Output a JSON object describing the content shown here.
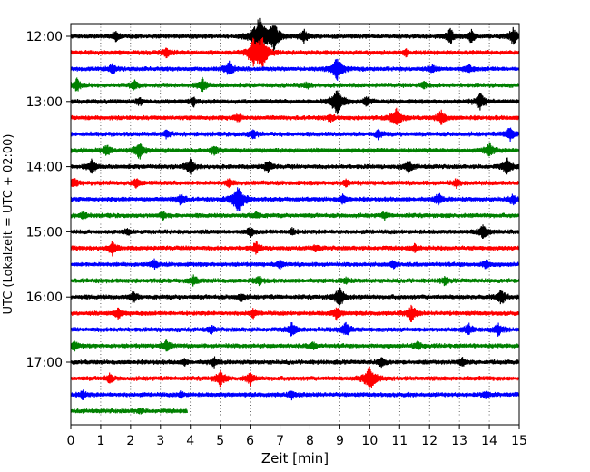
{
  "chart_data": {
    "type": "line",
    "xlabel": "Zeit  [min]",
    "ylabel": "UTC (Lokalzeit = UTC + 02:00)",
    "xlim": [
      0,
      15
    ],
    "x_ticks": [
      "0",
      "1",
      "2",
      "3",
      "4",
      "5",
      "6",
      "7",
      "8",
      "9",
      "10",
      "11",
      "12",
      "13",
      "14",
      "15"
    ],
    "y_ticks": [
      {
        "label": "12:00",
        "trace_index": 0
      },
      {
        "label": "13:00",
        "trace_index": 4
      },
      {
        "label": "14:00",
        "trace_index": 8
      },
      {
        "label": "15:00",
        "trace_index": 12
      },
      {
        "label": "16:00",
        "trace_index": 16
      },
      {
        "label": "17:00",
        "trace_index": 20
      }
    ],
    "grid": "vertical dotted",
    "trace_interval_minutes": 15,
    "color_cycle": [
      "#000000",
      "#ff0000",
      "#0000ff",
      "#008000"
    ],
    "traces": [
      {
        "start": "12:00",
        "duration_min": 15,
        "events": [
          [
            1.5,
            0.6
          ],
          [
            6.3,
            2.5
          ],
          [
            6.8,
            1.8
          ],
          [
            7.8,
            0.9
          ],
          [
            12.7,
            1.0
          ],
          [
            13.4,
            0.8
          ],
          [
            14.8,
            1.1
          ]
        ]
      },
      {
        "start": "12:15",
        "duration_min": 15,
        "events": [
          [
            3.2,
            0.7
          ],
          [
            6.1,
            1.6
          ],
          [
            6.4,
            2.0
          ],
          [
            11.2,
            0.5
          ]
        ]
      },
      {
        "start": "12:30",
        "duration_min": 15,
        "events": [
          [
            1.4,
            0.7
          ],
          [
            5.3,
            1.0
          ],
          [
            8.9,
            1.6
          ],
          [
            12.1,
            0.5
          ],
          [
            13.3,
            0.6
          ]
        ]
      },
      {
        "start": "12:45",
        "duration_min": 15,
        "events": [
          [
            0.2,
            0.9
          ],
          [
            2.1,
            0.7
          ],
          [
            4.4,
            0.9
          ],
          [
            7.9,
            0.4
          ],
          [
            11.8,
            0.5
          ]
        ]
      },
      {
        "start": "13:00",
        "duration_min": 15,
        "events": [
          [
            2.3,
            0.5
          ],
          [
            4.1,
            0.6
          ],
          [
            8.9,
            1.8
          ],
          [
            9.9,
            0.6
          ],
          [
            13.7,
            1.1
          ]
        ]
      },
      {
        "start": "13:15",
        "duration_min": 15,
        "events": [
          [
            5.6,
            0.5
          ],
          [
            8.7,
            0.5
          ],
          [
            10.9,
            1.4
          ],
          [
            12.4,
            1.0
          ]
        ]
      },
      {
        "start": "13:30",
        "duration_min": 15,
        "events": [
          [
            3.2,
            0.5
          ],
          [
            6.1,
            0.7
          ],
          [
            10.3,
            0.6
          ],
          [
            14.7,
            1.0
          ]
        ]
      },
      {
        "start": "13:45",
        "duration_min": 15,
        "events": [
          [
            1.2,
            0.7
          ],
          [
            2.3,
            1.2
          ],
          [
            4.8,
            0.7
          ],
          [
            14.0,
            1.0
          ]
        ]
      },
      {
        "start": "14:00",
        "duration_min": 15,
        "events": [
          [
            0.7,
            0.9
          ],
          [
            4.0,
            1.0
          ],
          [
            6.6,
            0.8
          ],
          [
            11.3,
            0.8
          ],
          [
            14.6,
            1.1
          ]
        ]
      },
      {
        "start": "14:15",
        "duration_min": 15,
        "events": [
          [
            0.1,
            0.7
          ],
          [
            2.2,
            0.6
          ],
          [
            5.3,
            0.5
          ],
          [
            9.2,
            0.4
          ],
          [
            12.9,
            0.5
          ]
        ]
      },
      {
        "start": "14:30",
        "duration_min": 15,
        "events": [
          [
            3.7,
            0.8
          ],
          [
            5.6,
            1.9
          ],
          [
            9.1,
            0.6
          ],
          [
            12.3,
            0.8
          ],
          [
            14.8,
            0.7
          ]
        ]
      },
      {
        "start": "14:45",
        "duration_min": 15,
        "events": [
          [
            0.4,
            0.5
          ],
          [
            3.1,
            0.5
          ],
          [
            6.2,
            0.5
          ],
          [
            10.5,
            0.4
          ]
        ]
      },
      {
        "start": "15:00",
        "duration_min": 15,
        "events": [
          [
            1.9,
            0.4
          ],
          [
            6.0,
            0.6
          ],
          [
            7.4,
            0.5
          ],
          [
            13.8,
            1.0
          ]
        ]
      },
      {
        "start": "15:15",
        "duration_min": 15,
        "events": [
          [
            1.4,
            0.9
          ],
          [
            6.2,
            0.8
          ],
          [
            8.2,
            0.4
          ],
          [
            11.5,
            0.5
          ]
        ]
      },
      {
        "start": "15:30",
        "duration_min": 15,
        "events": [
          [
            2.8,
            0.6
          ],
          [
            7.0,
            0.5
          ],
          [
            10.8,
            0.5
          ],
          [
            13.9,
            0.6
          ]
        ]
      },
      {
        "start": "15:45",
        "duration_min": 15,
        "events": [
          [
            4.1,
            0.7
          ],
          [
            6.3,
            0.6
          ],
          [
            9.2,
            0.4
          ],
          [
            12.5,
            0.5
          ]
        ]
      },
      {
        "start": "16:00",
        "duration_min": 15,
        "events": [
          [
            2.1,
            0.7
          ],
          [
            5.7,
            0.6
          ],
          [
            9.0,
            1.3
          ],
          [
            14.4,
            1.0
          ]
        ]
      },
      {
        "start": "16:15",
        "duration_min": 15,
        "events": [
          [
            1.6,
            0.8
          ],
          [
            6.1,
            0.6
          ],
          [
            8.9,
            0.8
          ],
          [
            11.4,
            1.1
          ]
        ]
      },
      {
        "start": "16:30",
        "duration_min": 15,
        "events": [
          [
            4.7,
            0.5
          ],
          [
            7.4,
            0.9
          ],
          [
            9.2,
            1.0
          ],
          [
            13.3,
            0.8
          ],
          [
            14.3,
            0.8
          ]
        ]
      },
      {
        "start": "16:45",
        "duration_min": 15,
        "events": [
          [
            0.1,
            0.7
          ],
          [
            3.2,
            0.8
          ],
          [
            8.1,
            0.5
          ],
          [
            11.6,
            0.6
          ]
        ]
      },
      {
        "start": "17:00",
        "duration_min": 15,
        "events": [
          [
            3.8,
            0.4
          ],
          [
            4.8,
            0.6
          ],
          [
            10.4,
            0.7
          ],
          [
            13.1,
            0.6
          ]
        ]
      },
      {
        "start": "17:15",
        "duration_min": 15,
        "events": [
          [
            1.3,
            0.6
          ],
          [
            5.0,
            1.0
          ],
          [
            6.0,
            0.8
          ],
          [
            10.0,
            1.7
          ]
        ]
      },
      {
        "start": "17:30",
        "duration_min": 15,
        "events": [
          [
            0.4,
            0.6
          ],
          [
            3.7,
            0.4
          ],
          [
            7.4,
            0.5
          ],
          [
            13.9,
            0.5
          ]
        ]
      },
      {
        "start": "17:45",
        "duration_min": 3.9,
        "events": [
          [
            2.3,
            0.3
          ]
        ]
      }
    ]
  }
}
